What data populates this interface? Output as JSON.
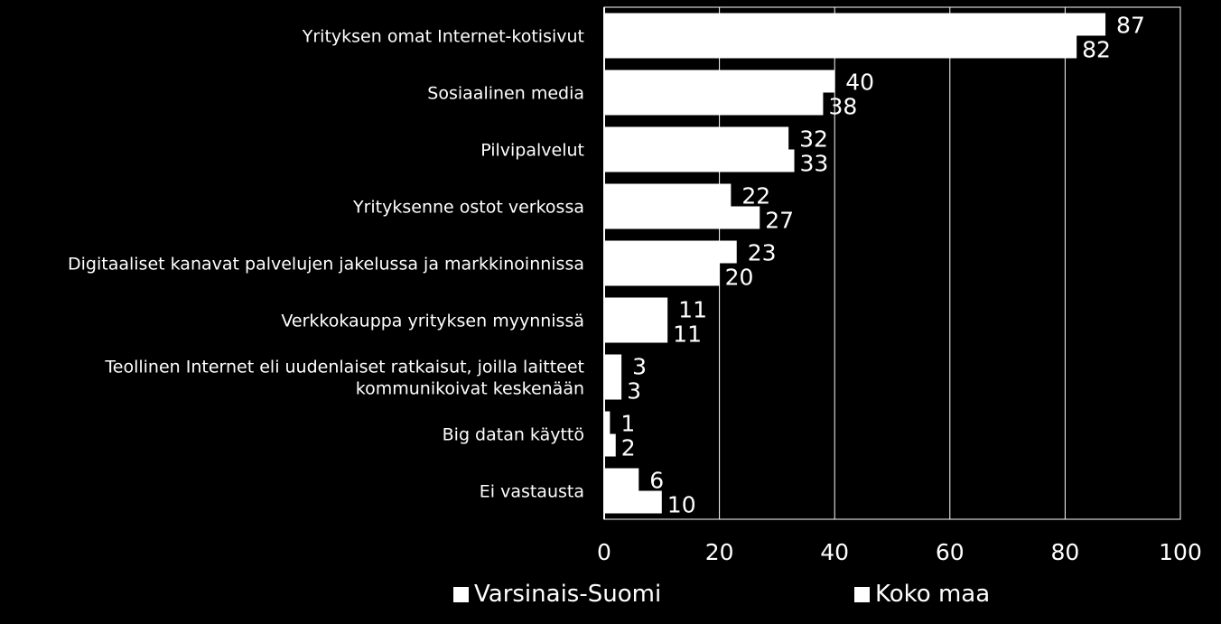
{
  "chart_data": {
    "type": "bar",
    "orientation": "horizontal",
    "categories": [
      "Yrityksen omat Internet-kotisivut",
      "Sosiaalinen media",
      "Pilvipalvelut",
      "Yrityksenne ostot verkossa",
      "Digitaaliset kanavat palvelujen jakelussa ja markkinoinnissa",
      "Verkkokauppa yrityksen myynnissä",
      "Teollinen Internet eli uudenlaiset ratkaisut, joilla laitteet kommunikoivat keskenään",
      "Big datan käyttö",
      "Ei vastausta"
    ],
    "series": [
      {
        "name": "Varsinais-Suomi",
        "values": [
          87,
          40,
          32,
          22,
          23,
          11,
          3,
          1,
          6
        ]
      },
      {
        "name": "Koko maa",
        "values": [
          82,
          38,
          33,
          27,
          20,
          11,
          3,
          2,
          10
        ]
      }
    ],
    "xlim": [
      0,
      100
    ],
    "xticks": [
      "0",
      "20",
      "40",
      "60",
      "80",
      "100"
    ],
    "grid": true,
    "legend_position": "bottom",
    "colors": {
      "background": "#000000",
      "bar": "#ffffff",
      "grid": "#ffffff",
      "text": "#ffffff"
    }
  },
  "legend": {
    "series1": "Varsinais-Suomi",
    "series2": "Koko maa"
  }
}
